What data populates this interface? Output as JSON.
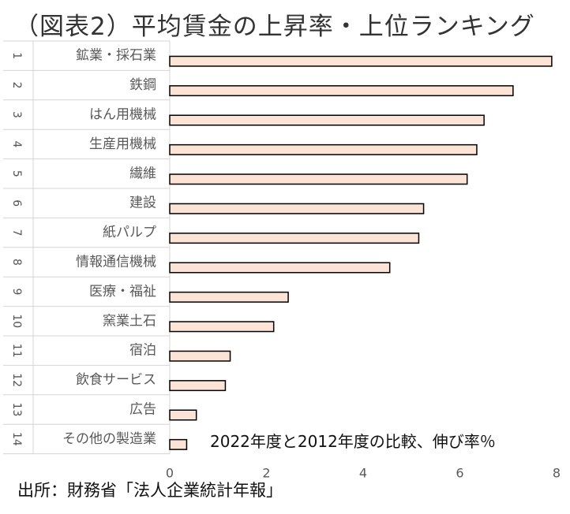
{
  "chart_data": {
    "type": "bar",
    "orientation": "horizontal",
    "title": "（図表2）平均賃金の上昇率・上位ランキング",
    "annotation": "2022年度と2012年度の比較、伸び率％",
    "source": "出所：財務省「法人企業統計年報」",
    "ranks": [
      "1",
      "2",
      "3",
      "4",
      "5",
      "6",
      "7",
      "8",
      "9",
      "10",
      "11",
      "12",
      "13",
      "14"
    ],
    "categories": [
      "鉱業・採石業",
      "鉄鋼",
      "はん用機械",
      "生産用機械",
      "繊維",
      "建設",
      "紙パルプ",
      "情報通信機械",
      "医療・福祉",
      "窯業土石",
      "宿泊",
      "飲食サービス",
      "広告",
      "その他の製造業"
    ],
    "values": [
      7.9,
      7.1,
      6.5,
      6.35,
      6.15,
      5.25,
      5.15,
      4.55,
      2.45,
      2.15,
      1.25,
      1.15,
      0.55,
      0.35
    ],
    "xlim": [
      0,
      8
    ],
    "xticks": [
      "0",
      "2",
      "4",
      "6",
      "8"
    ],
    "grid": false,
    "bar_fill": "#fbe3d6",
    "bar_stroke": "#000000"
  }
}
